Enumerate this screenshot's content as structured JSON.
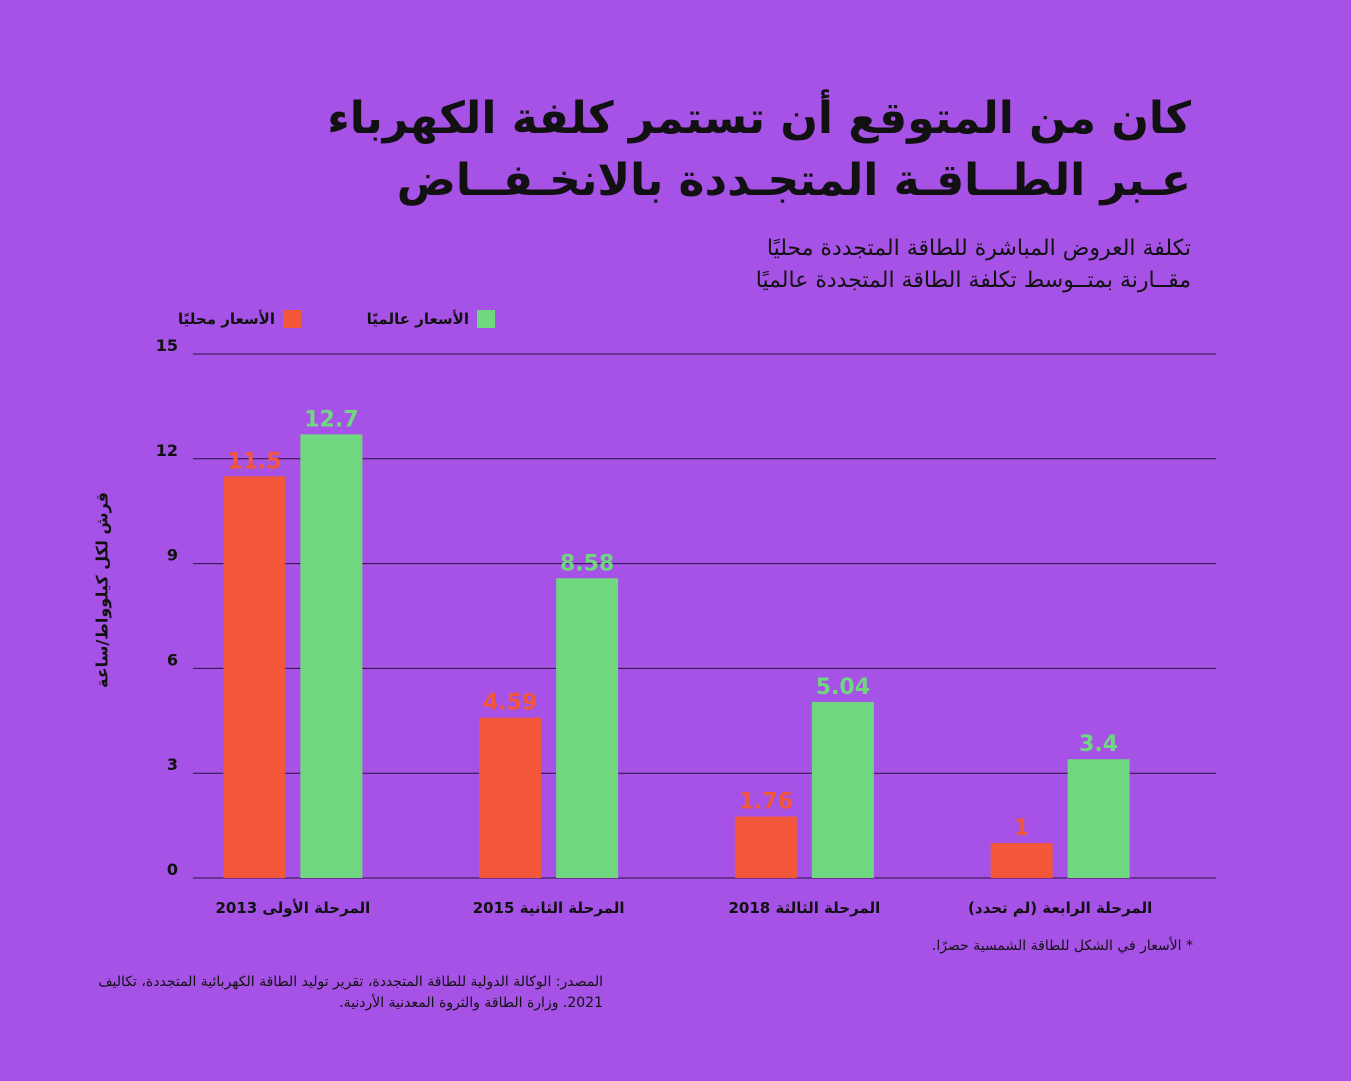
{
  "header": {
    "title_lines": [
      "كان من المتوقع أن تستمر كلفة الكهرباء",
      "عـبر الطــاقـة المتجـددة بالانخـفــاض"
    ],
    "subtitle_lines": [
      "تكلفة العروض المباشرة للطاقة المتجددة محليًا",
      "مقــارنة بمتــوسط تكلفة الطاقة المتجددة عالميًا"
    ]
  },
  "footer": {
    "note": "* الأسعار في الشكل للطاقة الشمسية حصرًا.",
    "source": "المصدر: الوكالة الدولية للطاقة المتجددة، تقرير توليد الطاقة الكهربائية المتجددة، تكاليف 2021. وزارة الطاقة والثروة المعدنية الأردنية."
  },
  "chart_data": {
    "type": "bar",
    "title": "",
    "xlabel": "",
    "ylabel": "قرش لكل كيلوواط/ساعة",
    "ylim": [
      0,
      15
    ],
    "yticks": [
      0,
      3,
      6,
      9,
      12,
      15
    ],
    "grid": true,
    "legend_position": "top-right",
    "categories": [
      "المرحلة الأولى 2013",
      "المرحلة الثانية 2015",
      "المرحلة الثالثة 2018",
      "المرحلة الرابعة (لم تحدد)"
    ],
    "series": [
      {
        "name": "الأسعار محليًا",
        "color": "#f2573a",
        "values": [
          11.5,
          4.59,
          1.76,
          1
        ],
        "labels": [
          "11.5",
          "4.59",
          "1.76",
          "1"
        ]
      },
      {
        "name": "الأسعار عالميًا",
        "color": "#6fd77f",
        "values": [
          12.7,
          8.58,
          5.04,
          3.4
        ],
        "labels": [
          "12.7",
          "8.58",
          "5.04",
          "3.4"
        ]
      }
    ]
  }
}
